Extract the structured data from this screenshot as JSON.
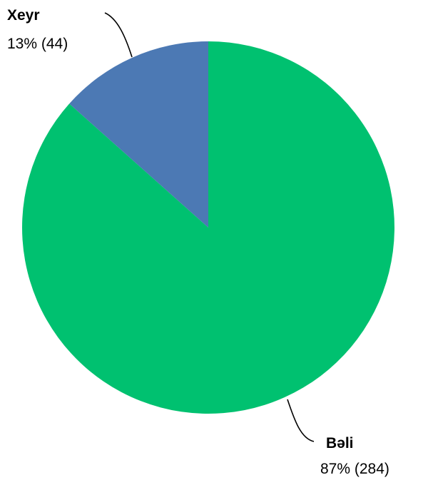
{
  "chart_data": {
    "type": "pie",
    "start_angle": "12 o'clock",
    "direction": "clockwise",
    "slices": [
      {
        "label": "Bəli",
        "value": 284,
        "percent_label": "87% (284)",
        "color": "#00c170"
      },
      {
        "label": "Xeyr",
        "value": 44,
        "percent_label": "13% (44)",
        "color": "#4c79b4"
      }
    ]
  }
}
